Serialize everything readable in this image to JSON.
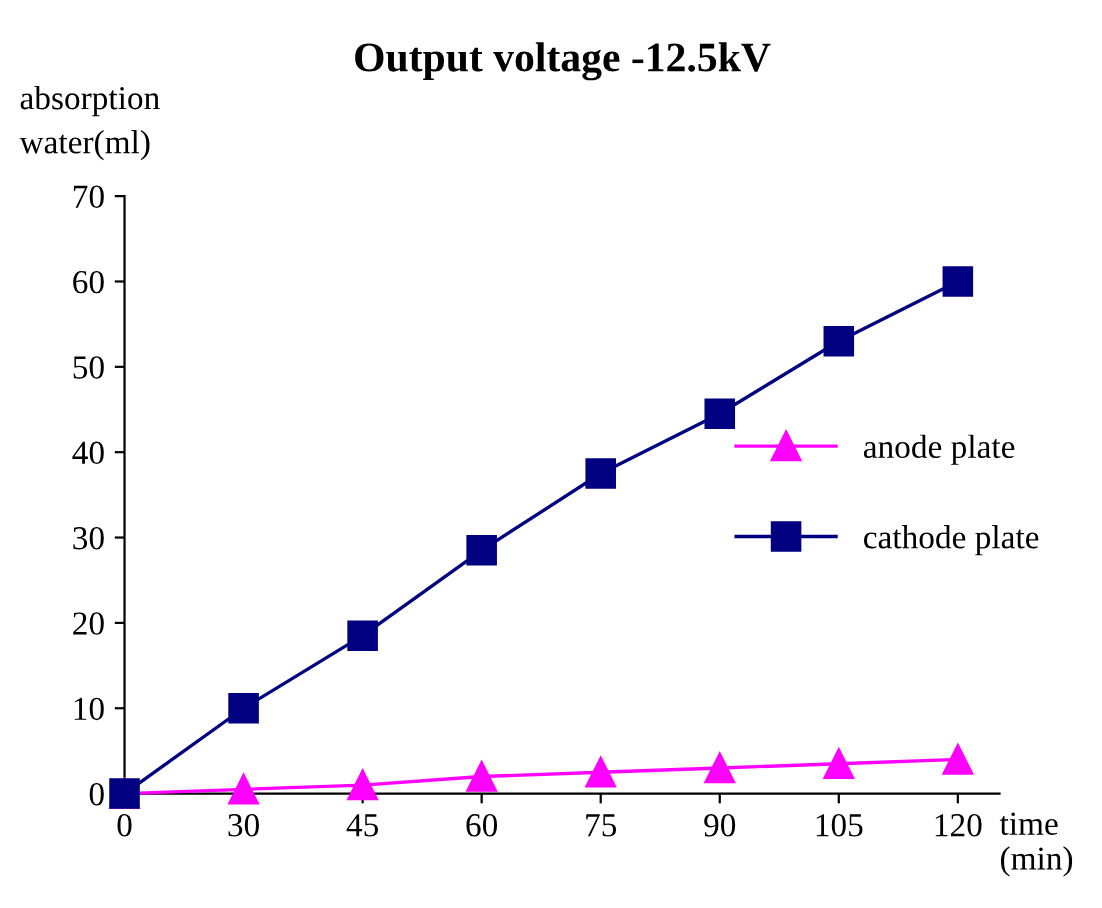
{
  "chart_data": {
    "type": "line",
    "title": "Output voltage -12.5kV",
    "ylabel": "absorption\nwater(ml)",
    "xlabel": "time\n(min)",
    "categories": [
      "0",
      "30",
      "45",
      "60",
      "75",
      "90",
      "105",
      "120"
    ],
    "series": [
      {
        "name": "anode plate",
        "color": "#ff00ff",
        "marker": "triangle",
        "values": [
          0,
          0.5,
          1,
          2,
          2.5,
          3,
          3.5,
          4
        ]
      },
      {
        "name": "cathode plate",
        "color": "#000080",
        "marker": "square",
        "values": [
          0,
          10,
          18.5,
          28.5,
          37.5,
          44.5,
          53,
          60
        ]
      }
    ],
    "ylim": [
      0,
      70
    ],
    "yticks": [
      0,
      10,
      20,
      30,
      40,
      50,
      60,
      70
    ],
    "grid": false,
    "legend": "right",
    "line_style": "solid"
  }
}
